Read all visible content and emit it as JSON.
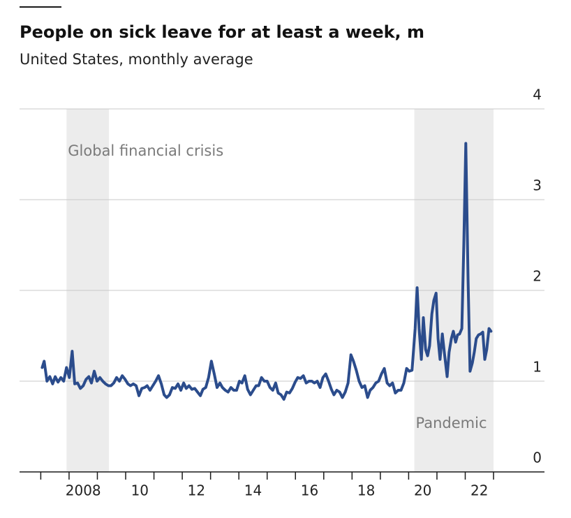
{
  "chart_data": {
    "type": "line",
    "title": "People on sick leave for at least a week, m",
    "subtitle": "United States, monthly average",
    "x": [
      2007.05,
      2007.12,
      2007.22,
      2007.32,
      2007.42,
      2007.51,
      2007.61,
      2007.71,
      2007.81,
      2007.91,
      2008.01,
      2008.11,
      2008.2,
      2008.3,
      2008.4,
      2008.5,
      2008.6,
      2008.7,
      2008.79,
      2008.89,
      2008.99,
      2009.09,
      2009.19,
      2009.29,
      2009.39,
      2009.48,
      2009.58,
      2009.68,
      2009.78,
      2009.88,
      2009.98,
      2010.08,
      2010.17,
      2010.27,
      2010.37,
      2010.47,
      2010.57,
      2010.67,
      2010.76,
      2010.86,
      2010.96,
      2011.06,
      2011.16,
      2011.26,
      2011.36,
      2011.45,
      2011.55,
      2011.65,
      2011.75,
      2011.85,
      2011.95,
      2012.05,
      2012.14,
      2012.24,
      2012.34,
      2012.44,
      2012.54,
      2012.64,
      2012.73,
      2012.83,
      2012.93,
      2013.03,
      2013.13,
      2013.23,
      2013.33,
      2013.42,
      2013.52,
      2013.62,
      2013.72,
      2013.82,
      2013.92,
      2014.02,
      2014.11,
      2014.21,
      2014.31,
      2014.41,
      2014.51,
      2014.61,
      2014.7,
      2014.8,
      2014.9,
      2015.0,
      2015.1,
      2015.2,
      2015.3,
      2015.39,
      2015.49,
      2015.59,
      2015.69,
      2015.79,
      2015.89,
      2015.99,
      2016.08,
      2016.18,
      2016.28,
      2016.38,
      2016.48,
      2016.58,
      2016.67,
      2016.77,
      2016.87,
      2016.97,
      2017.07,
      2017.17,
      2017.27,
      2017.36,
      2017.46,
      2017.56,
      2017.66,
      2017.76,
      2017.86,
      2017.96,
      2018.05,
      2018.15,
      2018.25,
      2018.35,
      2018.45,
      2018.55,
      2018.64,
      2018.74,
      2018.84,
      2018.94,
      2019.04,
      2019.14,
      2019.24,
      2019.33,
      2019.43,
      2019.53,
      2019.63,
      2019.73,
      2019.83,
      2019.93,
      2020.02,
      2020.12,
      2020.23,
      2020.3,
      2020.37,
      2020.45,
      2020.52,
      2020.6,
      2020.67,
      2020.74,
      2020.82,
      2020.89,
      2020.97,
      2021.04,
      2021.11,
      2021.19,
      2021.26,
      2021.36,
      2021.43,
      2021.51,
      2021.58,
      2021.66,
      2021.73,
      2021.8,
      2021.88,
      2021.95,
      2022.02,
      2022.1,
      2022.17,
      2022.25,
      2022.32,
      2022.39,
      2022.47,
      2022.54,
      2022.62,
      2022.69,
      2022.76,
      2022.84,
      2022.91
    ],
    "series": [
      {
        "name": "People on sick leave",
        "color": "#2b4c8c",
        "values": [
          1.15,
          1.22,
          1.0,
          1.05,
          0.97,
          1.05,
          0.99,
          1.04,
          1.0,
          1.15,
          1.04,
          1.33,
          0.97,
          0.98,
          0.92,
          0.95,
          1.02,
          1.05,
          0.98,
          1.11,
          1.0,
          1.04,
          1.0,
          0.97,
          0.95,
          0.95,
          0.98,
          1.04,
          1.0,
          1.06,
          1.02,
          0.97,
          0.95,
          0.97,
          0.95,
          0.84,
          0.92,
          0.93,
          0.95,
          0.9,
          0.95,
          1.0,
          1.06,
          0.97,
          0.85,
          0.82,
          0.85,
          0.93,
          0.92,
          0.97,
          0.9,
          0.98,
          0.92,
          0.95,
          0.91,
          0.92,
          0.88,
          0.84,
          0.91,
          0.93,
          1.04,
          1.22,
          1.08,
          0.93,
          0.98,
          0.93,
          0.9,
          0.88,
          0.93,
          0.9,
          0.9,
          1.0,
          0.98,
          1.06,
          0.91,
          0.85,
          0.9,
          0.95,
          0.95,
          1.04,
          1.0,
          1.0,
          0.93,
          0.9,
          0.98,
          0.87,
          0.85,
          0.8,
          0.88,
          0.87,
          0.92,
          0.99,
          1.04,
          1.03,
          1.06,
          0.98,
          1.0,
          1.0,
          0.98,
          1.0,
          0.93,
          1.04,
          1.08,
          1.0,
          0.91,
          0.85,
          0.9,
          0.88,
          0.82,
          0.88,
          0.98,
          1.29,
          1.22,
          1.12,
          1.0,
          0.93,
          0.95,
          0.82,
          0.9,
          0.93,
          0.98,
          1.0,
          1.08,
          1.14,
          0.98,
          0.95,
          0.98,
          0.87,
          0.9,
          0.9,
          0.98,
          1.14,
          1.11,
          1.12,
          1.58,
          2.03,
          1.58,
          1.24,
          1.7,
          1.35,
          1.28,
          1.39,
          1.74,
          1.89,
          1.97,
          1.47,
          1.24,
          1.52,
          1.32,
          1.05,
          1.32,
          1.47,
          1.55,
          1.43,
          1.51,
          1.52,
          1.58,
          2.51,
          3.62,
          2.12,
          1.11,
          1.2,
          1.32,
          1.47,
          1.51,
          1.52,
          1.54,
          1.24,
          1.35,
          1.58,
          1.55
        ]
      }
    ],
    "xlim": [
      2006.25,
      2024.8
    ],
    "xticks": [
      {
        "value": 2008.5,
        "label": "2008"
      },
      {
        "value": 2010.5,
        "label": "10"
      },
      {
        "value": 2012.5,
        "label": "12"
      },
      {
        "value": 2014.5,
        "label": "14"
      },
      {
        "value": 2016.5,
        "label": "16"
      },
      {
        "value": 2018.5,
        "label": "18"
      },
      {
        "value": 2020.5,
        "label": "20"
      },
      {
        "value": 2022.5,
        "label": "22"
      }
    ],
    "xminor_ticks": [
      2007,
      2008,
      2009,
      2010,
      2011,
      2012,
      2013,
      2014,
      2015,
      2016,
      2017,
      2018,
      2019,
      2020,
      2021,
      2022,
      2023
    ],
    "ylim": [
      0,
      4
    ],
    "yticks": [
      0,
      1,
      2,
      3,
      4
    ],
    "grid": true,
    "shaded": [
      {
        "label": "Global financial crisis",
        "start": 2007.91,
        "end": 2009.41,
        "color": "#ececec"
      },
      {
        "label": "Pandemic",
        "start": 2020.2,
        "end": 2023.0,
        "color": "#ececec"
      }
    ]
  }
}
